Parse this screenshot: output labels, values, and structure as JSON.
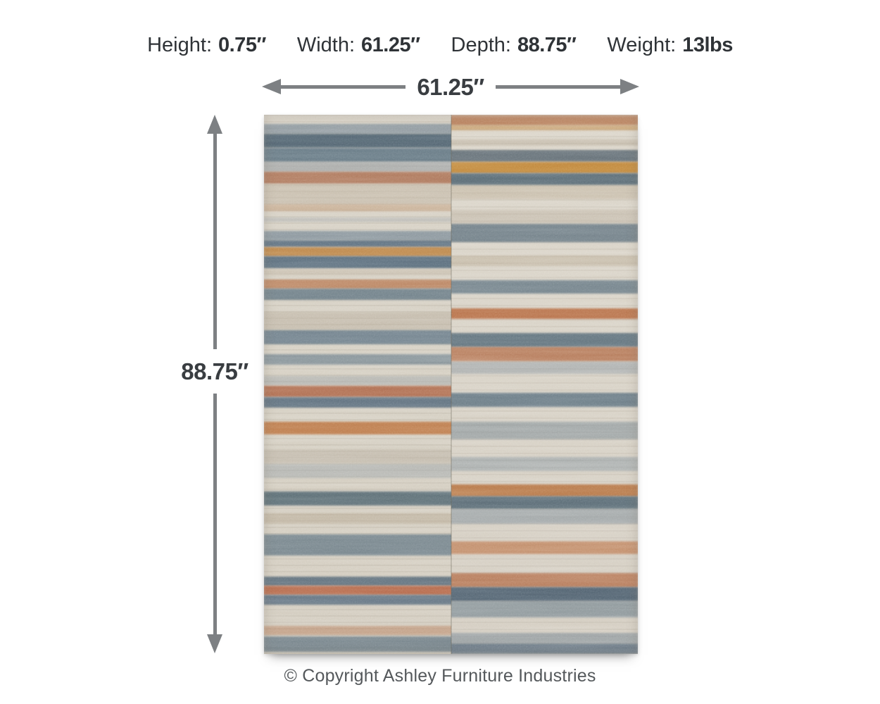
{
  "specs": [
    {
      "label": "Height:",
      "value": "0.75″"
    },
    {
      "label": "Width:",
      "value": "61.25″"
    },
    {
      "label": "Depth:",
      "value": "88.75″"
    },
    {
      "label": "Weight:",
      "value": "13lbs"
    }
  ],
  "dimensions": {
    "width_label": "61.25″",
    "depth_label": "88.75″"
  },
  "footer": {
    "copyright": "© Copyright Ashley Furniture Industries"
  },
  "colors": {
    "arrow": "#7d8083",
    "spec_text": "#2f3337",
    "dimension_label_text": "#393d41",
    "copyright_text": "#54585b",
    "rug_base": "#d6d0c4",
    "rug_slate_blue": "#54687a",
    "rug_rust": "#ae6a45",
    "rug_gold": "#bd8345",
    "rug_tan": "#b7a891"
  },
  "rug": {
    "left_stripes": [
      [
        1.7,
        1.8,
        "#7b8a95",
        0.75
      ],
      [
        3.5,
        2.6,
        "#4c606e",
        0.95
      ],
      [
        6.1,
        2.6,
        "#5d7280",
        0.9
      ],
      [
        8.8,
        1.8,
        "#90969b",
        0.6
      ],
      [
        10.6,
        2.2,
        "#a86a4c",
        0.85
      ],
      [
        12.8,
        3.8,
        "#bdb09c",
        0.5
      ],
      [
        16.6,
        1.3,
        "#c09a77",
        0.55
      ],
      [
        19.0,
        0.8,
        "#9aa0a5",
        0.4
      ],
      [
        21.6,
        1.6,
        "#7a8a95",
        0.8
      ],
      [
        23.2,
        1.3,
        "#54687a",
        0.9
      ],
      [
        24.5,
        1.8,
        "#bb803f",
        0.9
      ],
      [
        26.3,
        2.1,
        "#4f6577",
        0.9
      ],
      [
        28.6,
        1.2,
        "#c3b7a5",
        0.5
      ],
      [
        30.5,
        1.8,
        "#b5754d",
        0.8
      ],
      [
        32.3,
        2.1,
        "#5f737f",
        0.85
      ],
      [
        36.6,
        3.3,
        "#b3a794",
        0.45
      ],
      [
        39.9,
        2.6,
        "#5a7080",
        0.8
      ],
      [
        44.4,
        2.0,
        "#6a7d8a",
        0.7
      ],
      [
        48.4,
        1.7,
        "#9aa0a2",
        0.5
      ],
      [
        50.3,
        2.0,
        "#ad6546",
        0.9
      ],
      [
        52.3,
        2.0,
        "#55697a",
        0.9
      ],
      [
        56.9,
        2.4,
        "#bd7a49",
        0.95
      ],
      [
        62.0,
        2.6,
        "#b5ab9c",
        0.5
      ],
      [
        64.7,
        2.6,
        "#8c98a0",
        0.4
      ],
      [
        69.9,
        2.6,
        "#51656f",
        0.9
      ],
      [
        73.9,
        2.0,
        "#b3a48d",
        0.5
      ],
      [
        77.8,
        3.9,
        "#5b707e",
        0.75
      ],
      [
        85.6,
        1.7,
        "#4f6373",
        0.85
      ],
      [
        87.3,
        1.7,
        "#b25f3f",
        0.9
      ],
      [
        89.0,
        1.8,
        "#54687a",
        0.85
      ],
      [
        94.8,
        1.7,
        "#b57a55",
        0.5
      ],
      [
        96.7,
        2.9,
        "#5a6e7c",
        0.75
      ]
    ],
    "right_stripes": [
      [
        0.0,
        2.0,
        "#b5764f",
        0.85
      ],
      [
        2.0,
        0.9,
        "#c08a4a",
        0.6
      ],
      [
        4.6,
        1.2,
        "#b7ab99",
        0.5
      ],
      [
        6.5,
        2.2,
        "#54626c",
        0.85
      ],
      [
        8.8,
        2.1,
        "#c08435",
        0.95
      ],
      [
        10.9,
        2.2,
        "#4f636f",
        0.9
      ],
      [
        13.1,
        2.6,
        "#bdae97",
        0.5
      ],
      [
        17.6,
        2.6,
        "#b9ad9c",
        0.45
      ],
      [
        20.3,
        3.3,
        "#5a6d7a",
        0.8
      ],
      [
        26.1,
        2.0,
        "#b9ab94",
        0.5
      ],
      [
        30.7,
        2.4,
        "#5e727f",
        0.8
      ],
      [
        35.9,
        2.0,
        "#b5693f",
        0.9
      ],
      [
        40.5,
        2.6,
        "#4f6573",
        0.85
      ],
      [
        43.1,
        2.6,
        "#b06a45",
        0.8
      ],
      [
        45.8,
        2.2,
        "#8c97a0",
        0.5
      ],
      [
        51.6,
        2.6,
        "#5a6f7d",
        0.85
      ],
      [
        56.9,
        3.3,
        "#7f8c94",
        0.6
      ],
      [
        63.4,
        2.6,
        "#8d99a1",
        0.55
      ],
      [
        68.6,
        2.1,
        "#b5713f",
        0.9
      ],
      [
        70.7,
        2.4,
        "#4f636f",
        0.9
      ],
      [
        73.1,
        2.7,
        "#85929b",
        0.6
      ],
      [
        79.1,
        2.4,
        "#bd7a50",
        0.75
      ],
      [
        85.0,
        2.6,
        "#b06a45",
        0.8
      ],
      [
        87.6,
        2.6,
        "#46596a",
        0.9
      ],
      [
        90.2,
        3.0,
        "#6d7f8b",
        0.65
      ],
      [
        96.1,
        2.0,
        "#7a8893",
        0.6
      ],
      [
        98.0,
        2.0,
        "#54687a",
        0.8
      ]
    ]
  }
}
